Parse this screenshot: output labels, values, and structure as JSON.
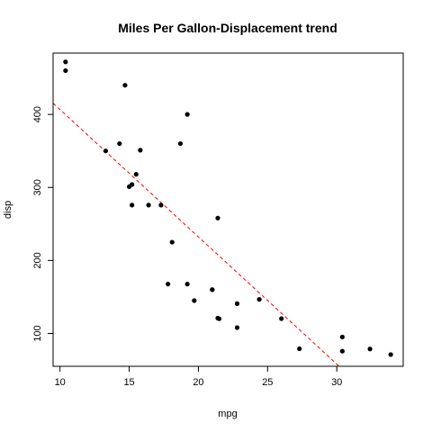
{
  "chart_data": {
    "type": "scatter",
    "title": "Miles Per Gallon-Displacement trend",
    "xlabel": "mpg",
    "ylabel": "disp",
    "xlim": [
      9.5,
      34.8
    ],
    "ylim": [
      55,
      484
    ],
    "x_ticks": [
      10,
      15,
      20,
      25,
      30
    ],
    "y_ticks": [
      100,
      200,
      300,
      400
    ],
    "grid": false,
    "point_color": "#000000",
    "trend_color": "#ff0000",
    "trend_line": {
      "style": "dashed",
      "intercept": 580.9,
      "slope": -17.43
    },
    "series": [
      {
        "x": [
          21.0,
          21.0,
          22.8,
          21.4,
          18.7,
          18.1,
          14.3,
          24.4,
          22.8,
          19.2,
          17.8,
          16.4,
          17.3,
          15.2,
          10.4,
          10.4,
          14.7,
          32.4,
          30.4,
          33.9,
          21.5,
          15.5,
          15.2,
          13.3,
          19.2,
          27.3,
          26.0,
          30.4,
          15.8,
          19.7,
          15.0,
          21.4
        ],
        "y": [
          160.0,
          160.0,
          108.0,
          258.0,
          360.0,
          225.0,
          360.0,
          146.7,
          140.8,
          167.6,
          167.6,
          275.8,
          275.8,
          275.8,
          472.0,
          460.0,
          440.0,
          78.7,
          75.7,
          71.1,
          120.1,
          318.0,
          304.0,
          350.0,
          400.0,
          79.0,
          120.3,
          95.1,
          351.0,
          145.0,
          301.0,
          121.0
        ]
      }
    ]
  }
}
